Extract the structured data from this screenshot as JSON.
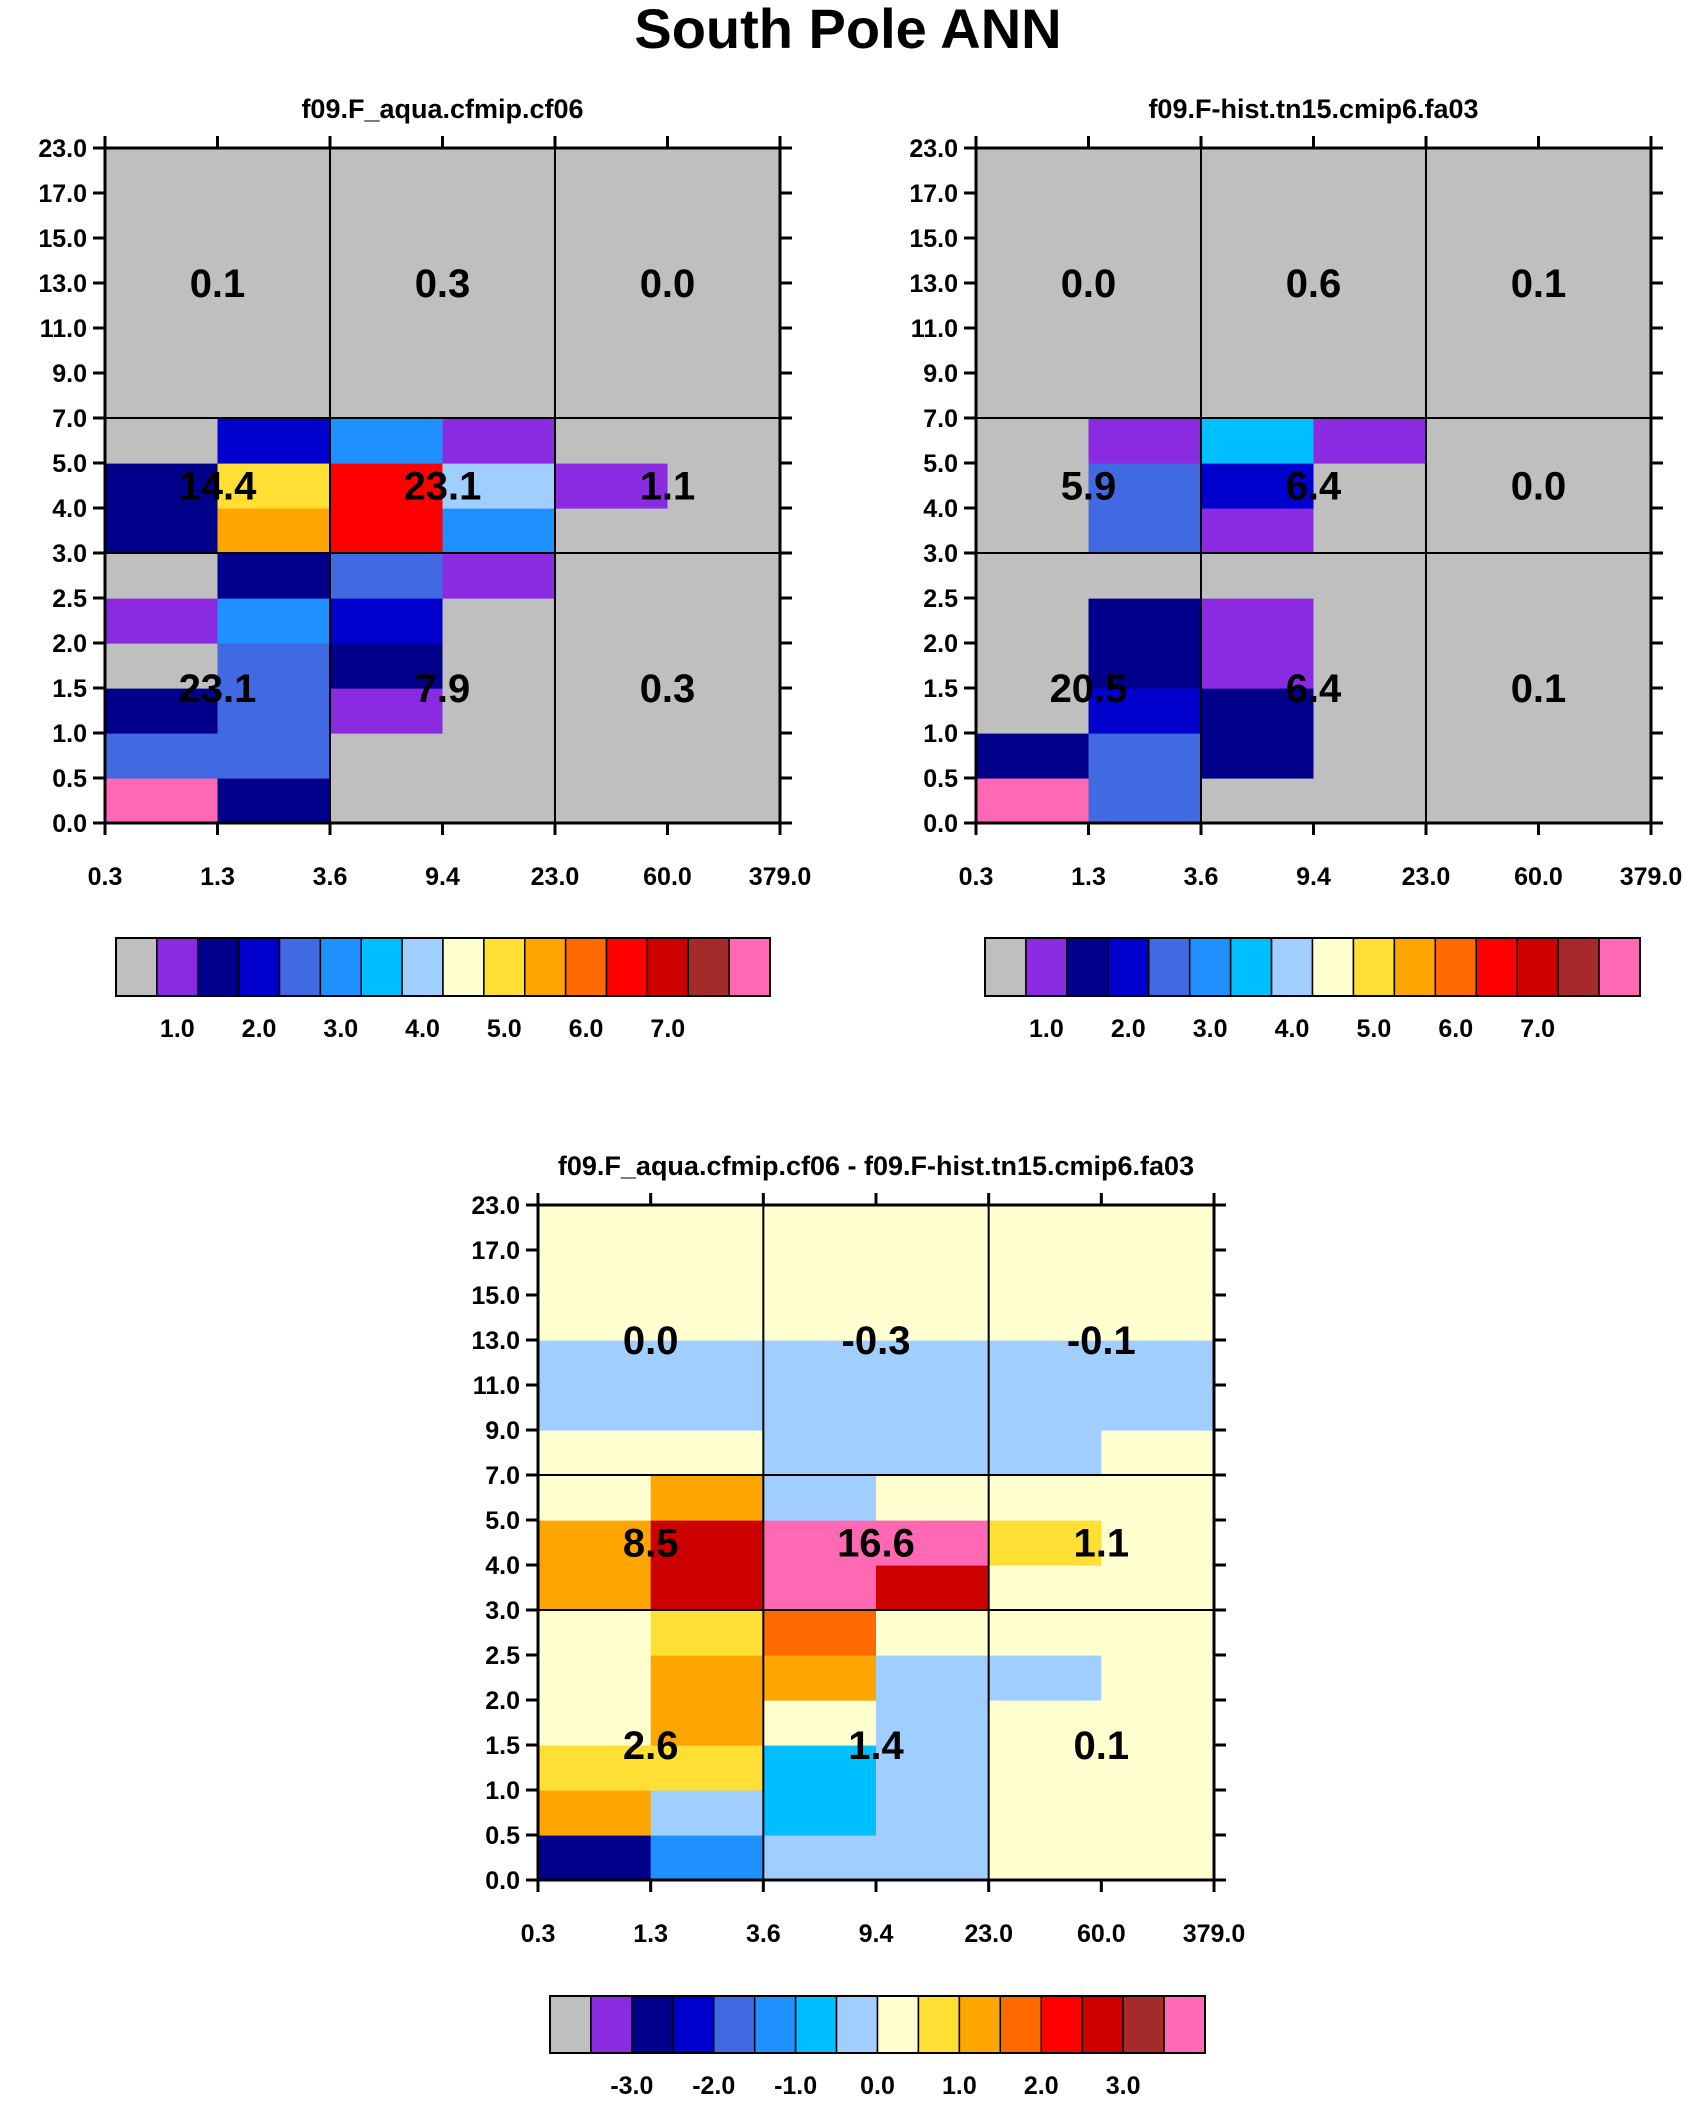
{
  "figure_title": "South Pole ANN",
  "colors": {
    "missing": "#bfbfbf",
    "abs_palette": [
      "#bfbfbf",
      "#8a2be2",
      "#00008b",
      "#0000cd",
      "#4169e1",
      "#1e90ff",
      "#00bfff",
      "#a0cfff",
      "#ffffd0",
      "#ffdf33",
      "#ffa500",
      "#ff6a00",
      "#ff0000",
      "#cd0000",
      "#a52a2a",
      "#ff69b4"
    ],
    "diff_palette": [
      "#bfbfbf",
      "#8a2be2",
      "#00008b",
      "#0000cd",
      "#4169e1",
      "#1e90ff",
      "#00bfff",
      "#a0cfff",
      "#ffffd0",
      "#ffdf33",
      "#ffa500",
      "#ff6a00",
      "#ff0000",
      "#cd0000",
      "#a52a2a",
      "#ff69b4"
    ]
  },
  "chart_data": [
    {
      "type": "heatmap",
      "title": "f09.F_aqua.cfmip.cf06",
      "x_tick_labels": [
        "0.3",
        "1.3",
        "3.6",
        "9.4",
        "23.0",
        "60.0",
        "379.0"
      ],
      "y_tick_labels": [
        "0.0",
        "0.5",
        "1.0",
        "1.5",
        "2.0",
        "2.5",
        "3.0",
        "4.0",
        "5.0",
        "7.0",
        "9.0",
        "11.0",
        "13.0",
        "15.0",
        "17.0",
        "23.0"
      ],
      "cells": [
        [
          15,
          2,
          0,
          0,
          0,
          0
        ],
        [
          4,
          4,
          0,
          0,
          0,
          0
        ],
        [
          2,
          4,
          1,
          0,
          0,
          0
        ],
        [
          0,
          4,
          2,
          0,
          0,
          0
        ],
        [
          1,
          5,
          3,
          0,
          0,
          0
        ],
        [
          0,
          2,
          4,
          1,
          0,
          0
        ],
        [
          2,
          10,
          12,
          5,
          0,
          0
        ],
        [
          2,
          9,
          12,
          7,
          1,
          0
        ],
        [
          0,
          3,
          5,
          1,
          0,
          0
        ],
        [
          0,
          0,
          0,
          0,
          0,
          0
        ],
        [
          0,
          0,
          0,
          0,
          0,
          0
        ],
        [
          0,
          0,
          0,
          0,
          0,
          0
        ],
        [
          0,
          0,
          0,
          0,
          0,
          0
        ],
        [
          0,
          0,
          0,
          0,
          0,
          0
        ],
        [
          0,
          0,
          0,
          0,
          0,
          0
        ]
      ],
      "group_totals": [
        {
          "row": "low",
          "col": "thin",
          "value": "23.1"
        },
        {
          "row": "low",
          "col": "mid",
          "value": "7.9"
        },
        {
          "row": "low",
          "col": "thick",
          "value": "0.3"
        },
        {
          "row": "mid",
          "col": "thin",
          "value": "14.4"
        },
        {
          "row": "mid",
          "col": "mid",
          "value": "23.1"
        },
        {
          "row": "mid",
          "col": "thick",
          "value": "1.1"
        },
        {
          "row": "high",
          "col": "thin",
          "value": "0.1"
        },
        {
          "row": "high",
          "col": "mid",
          "value": "0.3"
        },
        {
          "row": "high",
          "col": "thick",
          "value": "0.0"
        }
      ],
      "colorbar": {
        "labels": [
          "1.0",
          "2.0",
          "3.0",
          "4.0",
          "5.0",
          "6.0",
          "7.0"
        ],
        "label_positions": [
          1.5,
          3.5,
          5.5,
          7.5,
          9.5,
          11.5,
          13.5
        ],
        "boxes": 16
      }
    },
    {
      "type": "heatmap",
      "title": "f09.F-hist.tn15.cmip6.fa03",
      "x_tick_labels": [
        "0.3",
        "1.3",
        "3.6",
        "9.4",
        "23.0",
        "60.0",
        "379.0"
      ],
      "y_tick_labels": [
        "0.0",
        "0.5",
        "1.0",
        "1.5",
        "2.0",
        "2.5",
        "3.0",
        "4.0",
        "5.0",
        "7.0",
        "9.0",
        "11.0",
        "13.0",
        "15.0",
        "17.0",
        "23.0"
      ],
      "cells": [
        [
          15,
          4,
          0,
          0,
          0,
          0
        ],
        [
          2,
          4,
          2,
          0,
          0,
          0
        ],
        [
          0,
          3,
          2,
          0,
          0,
          0
        ],
        [
          0,
          2,
          1,
          0,
          0,
          0
        ],
        [
          0,
          2,
          1,
          0,
          0,
          0
        ],
        [
          0,
          0,
          0,
          0,
          0,
          0
        ],
        [
          0,
          4,
          1,
          0,
          0,
          0
        ],
        [
          0,
          4,
          3,
          0,
          0,
          0
        ],
        [
          0,
          1,
          6,
          1,
          0,
          0
        ],
        [
          0,
          0,
          0,
          0,
          0,
          0
        ],
        [
          0,
          0,
          0,
          0,
          0,
          0
        ],
        [
          0,
          0,
          0,
          0,
          0,
          0
        ],
        [
          0,
          0,
          0,
          0,
          0,
          0
        ],
        [
          0,
          0,
          0,
          0,
          0,
          0
        ],
        [
          0,
          0,
          0,
          0,
          0,
          0
        ]
      ],
      "group_totals": [
        {
          "row": "low",
          "col": "thin",
          "value": "20.5"
        },
        {
          "row": "low",
          "col": "mid",
          "value": "6.4"
        },
        {
          "row": "low",
          "col": "thick",
          "value": "0.1"
        },
        {
          "row": "mid",
          "col": "thin",
          "value": "5.9"
        },
        {
          "row": "mid",
          "col": "mid",
          "value": "6.4"
        },
        {
          "row": "mid",
          "col": "thick",
          "value": "0.0"
        },
        {
          "row": "high",
          "col": "thin",
          "value": "0.0"
        },
        {
          "row": "high",
          "col": "mid",
          "value": "0.6"
        },
        {
          "row": "high",
          "col": "thick",
          "value": "0.1"
        }
      ],
      "colorbar": {
        "labels": [
          "1.0",
          "2.0",
          "3.0",
          "4.0",
          "5.0",
          "6.0",
          "7.0"
        ],
        "label_positions": [
          1.5,
          3.5,
          5.5,
          7.5,
          9.5,
          11.5,
          13.5
        ],
        "boxes": 16
      }
    },
    {
      "type": "heatmap",
      "title": "f09.F_aqua.cfmip.cf06 - f09.F-hist.tn15.cmip6.fa03",
      "x_tick_labels": [
        "0.3",
        "1.3",
        "3.6",
        "9.4",
        "23.0",
        "60.0",
        "379.0"
      ],
      "y_tick_labels": [
        "0.0",
        "0.5",
        "1.0",
        "1.5",
        "2.0",
        "2.5",
        "3.0",
        "4.0",
        "5.0",
        "7.0",
        "9.0",
        "11.0",
        "13.0",
        "15.0",
        "17.0",
        "23.0"
      ],
      "cells": [
        [
          2,
          5,
          7,
          7,
          8,
          8
        ],
        [
          10,
          7,
          6,
          7,
          8,
          8
        ],
        [
          9,
          9,
          6,
          7,
          8,
          8
        ],
        [
          8,
          10,
          8,
          7,
          8,
          8
        ],
        [
          8,
          10,
          10,
          7,
          7,
          8
        ],
        [
          8,
          9,
          11,
          8,
          8,
          8
        ],
        [
          10,
          13,
          15,
          13,
          8,
          8
        ],
        [
          10,
          13,
          15,
          15,
          9,
          8
        ],
        [
          8,
          10,
          7,
          8,
          8,
          8
        ],
        [
          8,
          8,
          7,
          7,
          7,
          8
        ],
        [
          7,
          7,
          7,
          7,
          7,
          7
        ],
        [
          7,
          7,
          7,
          7,
          7,
          7
        ],
        [
          8,
          8,
          8,
          8,
          8,
          8
        ],
        [
          8,
          8,
          8,
          8,
          8,
          8
        ],
        [
          8,
          8,
          8,
          8,
          8,
          8
        ]
      ],
      "group_totals": [
        {
          "row": "low",
          "col": "thin",
          "value": "2.6"
        },
        {
          "row": "low",
          "col": "mid",
          "value": "1.4"
        },
        {
          "row": "low",
          "col": "thick",
          "value": "0.1"
        },
        {
          "row": "mid",
          "col": "thin",
          "value": "8.5"
        },
        {
          "row": "mid",
          "col": "mid",
          "value": "16.6"
        },
        {
          "row": "mid",
          "col": "thick",
          "value": "1.1"
        },
        {
          "row": "high",
          "col": "thin",
          "value": "0.0"
        },
        {
          "row": "high",
          "col": "mid",
          "value": "-0.3"
        },
        {
          "row": "high",
          "col": "thick",
          "value": "-0.1"
        }
      ],
      "colorbar": {
        "labels": [
          "-3.0",
          "-2.0",
          "-1.0",
          "0.0",
          "1.0",
          "2.0",
          "3.0"
        ],
        "label_positions": [
          2,
          4,
          6,
          8,
          10,
          12,
          14
        ],
        "boxes": 16
      }
    }
  ]
}
